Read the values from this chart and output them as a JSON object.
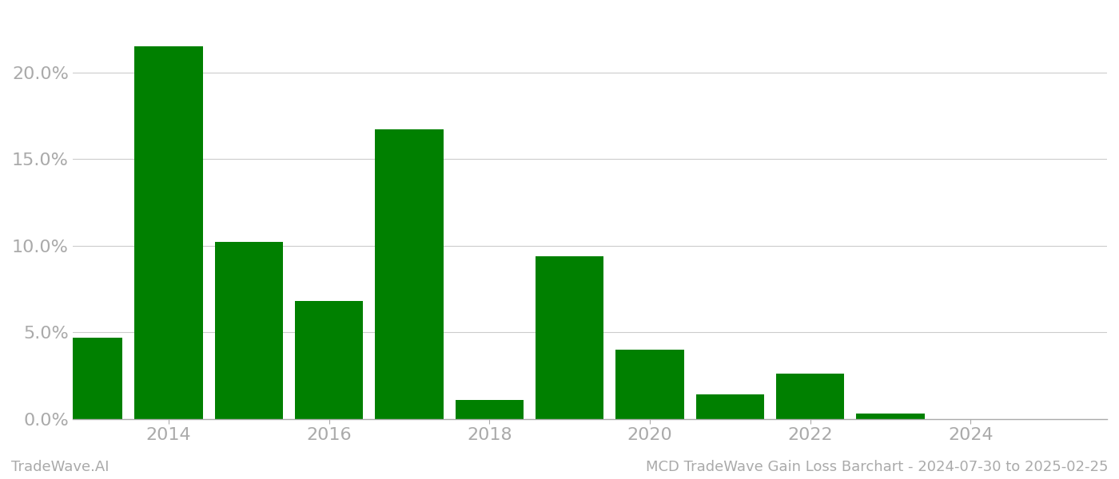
{
  "years": [
    2013,
    2014,
    2015,
    2016,
    2017,
    2018,
    2019,
    2020,
    2021,
    2022,
    2023,
    2024
  ],
  "values": [
    0.047,
    0.215,
    0.102,
    0.068,
    0.167,
    0.011,
    0.094,
    0.04,
    0.014,
    0.026,
    0.003,
    0.0
  ],
  "bar_color": "#008000",
  "background_color": "#ffffff",
  "ylabel_color": "#aaaaaa",
  "xlabel_color": "#aaaaaa",
  "grid_color": "#cccccc",
  "footer_left": "TradeWave.AI",
  "footer_right": "MCD TradeWave Gain Loss Barchart - 2024-07-30 to 2025-02-25",
  "footer_color": "#aaaaaa",
  "footer_fontsize": 13,
  "ylim": [
    0,
    0.235
  ],
  "yticks": [
    0.0,
    0.05,
    0.1,
    0.15,
    0.2
  ],
  "xtick_positions": [
    2014,
    2016,
    2018,
    2020,
    2022,
    2024
  ],
  "bar_width": 0.85,
  "tick_fontsize": 16,
  "fig_width": 14.0,
  "fig_height": 6.0,
  "xlim_left": 2012.3,
  "xlim_right": 2025.2
}
